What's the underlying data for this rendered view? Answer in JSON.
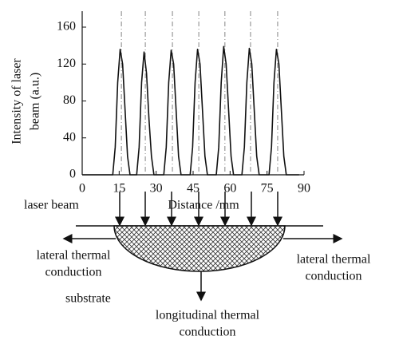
{
  "chart_data": {
    "type": "line",
    "y_label": [
      "Intensity of laser",
      "beam (a.u.)"
    ],
    "x_label": "Distance /mm",
    "xlim": [
      0,
      90
    ],
    "xticks": [
      0,
      15,
      30,
      45,
      60,
      75,
      90
    ],
    "ylim": [
      0,
      160
    ],
    "yticks": [
      0,
      40,
      80,
      120,
      160
    ],
    "reference_lines": [
      15.9,
      25.6,
      36.6,
      47.3,
      57.9,
      68.3,
      79.3
    ],
    "series": [
      {
        "color": "#111111",
        "x": [
          0,
          12.4,
          13.4,
          14.4,
          15.4,
          16.4,
          17.4,
          18.4,
          19.4,
          22.1,
          23.1,
          24.1,
          25.1,
          26.1,
          27.1,
          28.1,
          29.1,
          33.1,
          34.1,
          35.1,
          36.1,
          37.1,
          38.1,
          39.1,
          40.1,
          43.8,
          44.8,
          45.8,
          46.8,
          47.8,
          48.8,
          49.8,
          50.8,
          54.4,
          55.4,
          56.4,
          57.4,
          58.4,
          59.4,
          60.4,
          61.4,
          64.8,
          65.8,
          66.8,
          67.8,
          68.8,
          69.8,
          70.8,
          71.8,
          75.8,
          76.8,
          77.8,
          78.8,
          79.8,
          80.8,
          81.8,
          82.8,
          88
        ],
        "values": [
          0,
          0,
          30,
          100,
          136,
          120,
          70,
          20,
          0,
          0,
          30,
          100,
          133,
          110,
          60,
          20,
          0,
          0,
          30,
          100,
          135,
          120,
          70,
          20,
          0,
          0,
          30,
          100,
          136,
          120,
          70,
          20,
          0,
          0,
          30,
          100,
          139,
          120,
          70,
          20,
          0,
          0,
          30,
          100,
          137,
          120,
          70,
          20,
          0,
          0,
          30,
          100,
          136,
          120,
          70,
          20,
          0,
          0
        ]
      }
    ]
  },
  "diagram": {
    "laser_beam": "laser beam",
    "lateral_left": [
      "lateral thermal",
      "conduction"
    ],
    "lateral_right": [
      "lateral thermal",
      "conduction"
    ],
    "substrate": "substrate",
    "longitudinal": [
      "longitudinal thermal",
      "conduction"
    ]
  }
}
